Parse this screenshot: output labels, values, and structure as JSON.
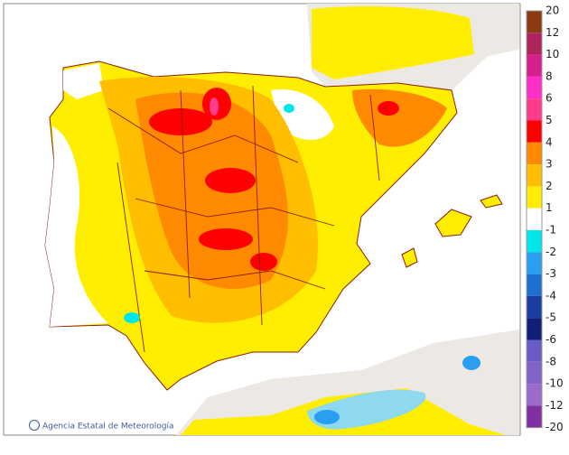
{
  "credit": "Agencia Estatal de Meteorología",
  "legend": {
    "labels": [
      20,
      12,
      10,
      8,
      6,
      5,
      4,
      3,
      2,
      1,
      -1,
      -2,
      -3,
      -4,
      -5,
      -6,
      -8,
      -10,
      -12,
      -20
    ],
    "colors": [
      "#8b3a12",
      "#b0245c",
      "#d6208c",
      "#ff2ec8",
      "#ff3c8c",
      "#ff0000",
      "#ff8a00",
      "#ffbe00",
      "#ffee00",
      "#ffffff",
      "#00e6e6",
      "#2a9ff0",
      "#1f6fd0",
      "#1a3ea2",
      "#101e78",
      "#6a5cc6",
      "#8264c8",
      "#9a6cc8",
      "#8030a0"
    ]
  }
}
